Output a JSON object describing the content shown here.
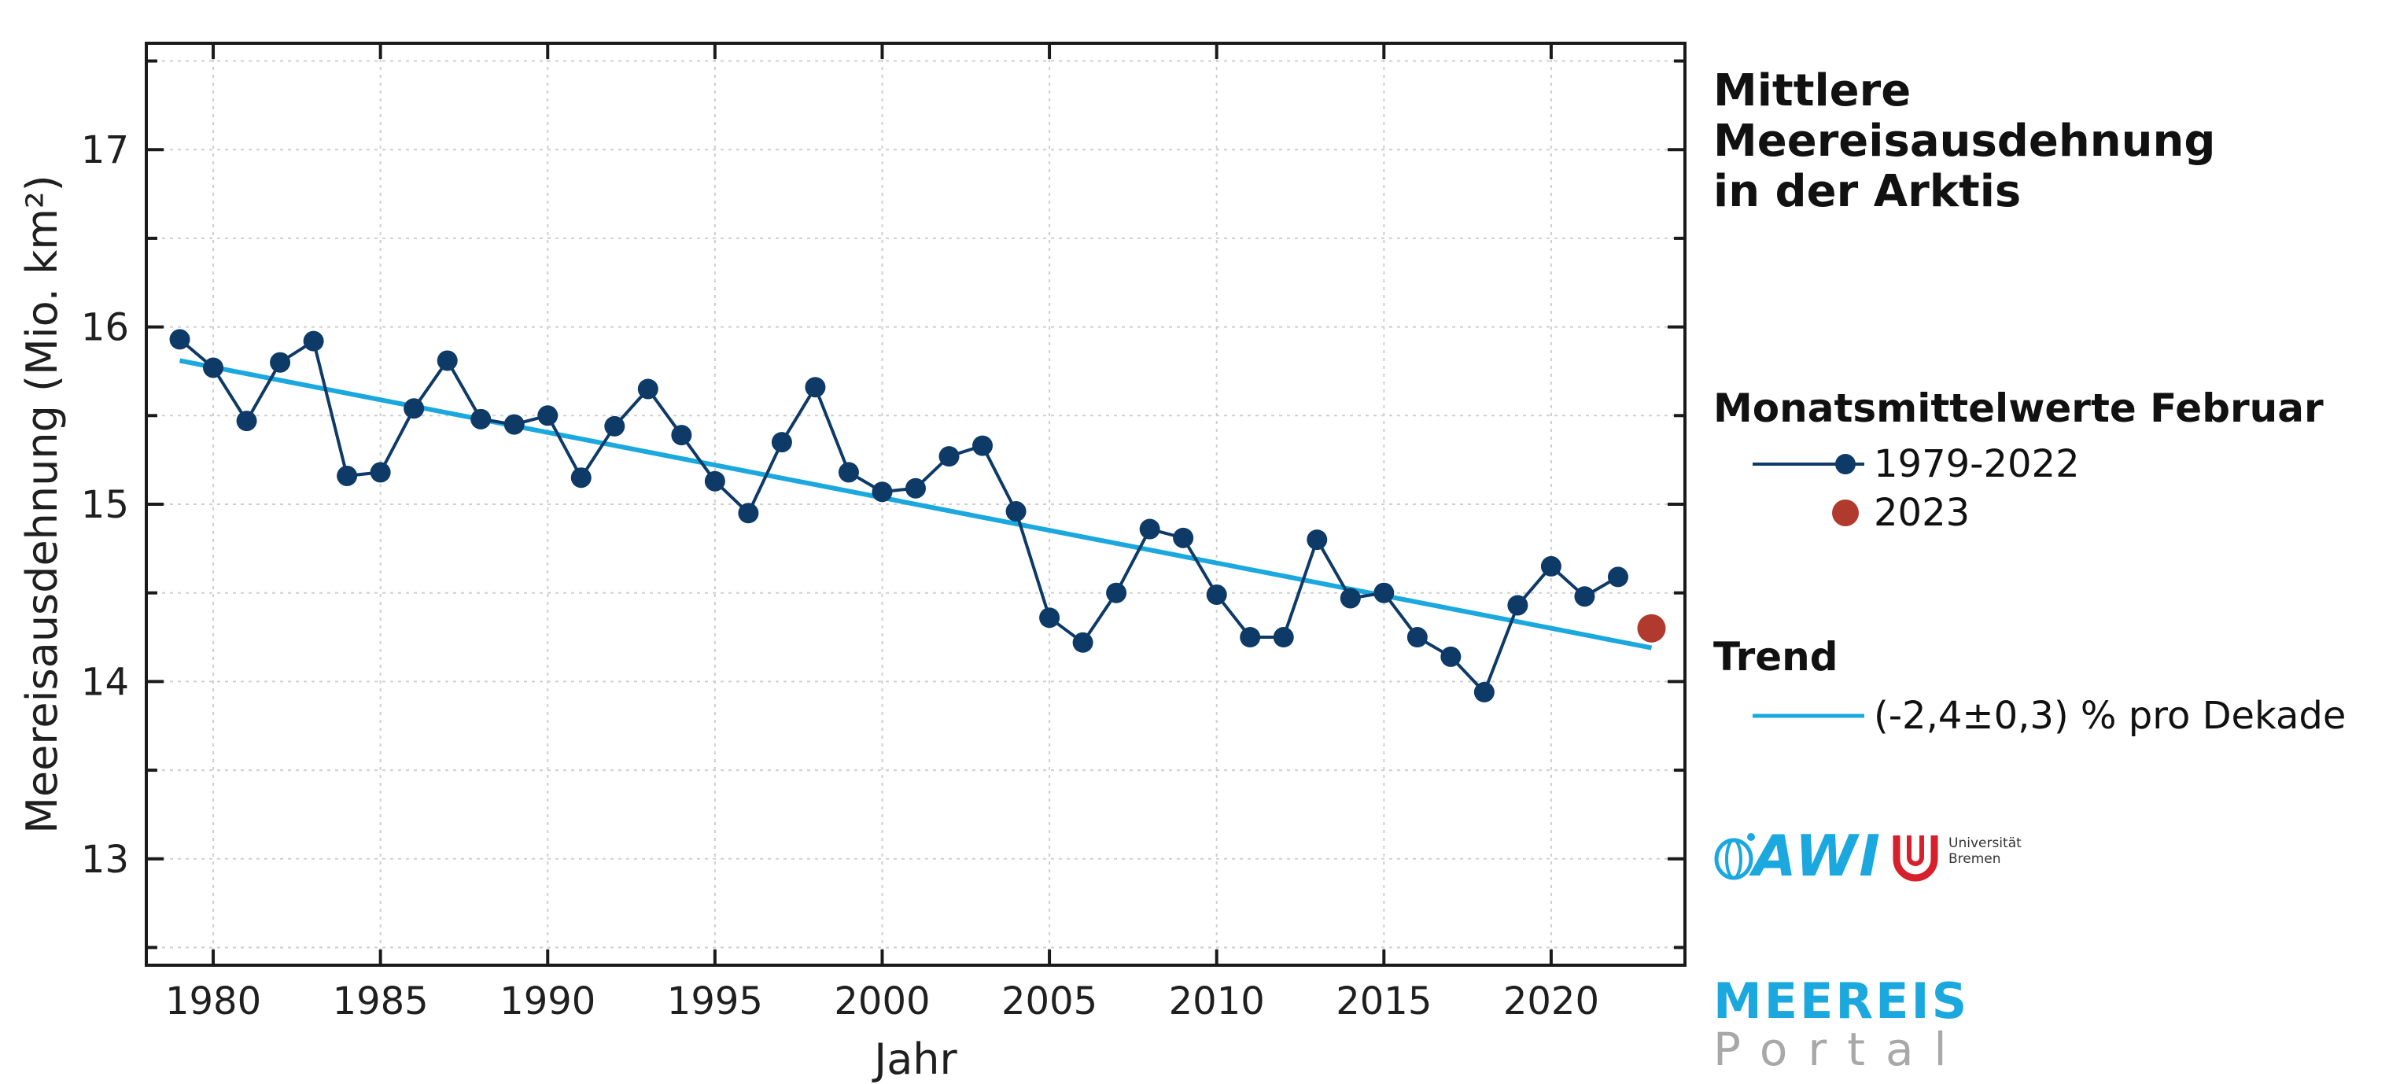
{
  "title_line1": "Mittlere Meereisausdehnung",
  "title_line2": "in der Arktis",
  "legend": {
    "group1_title": "Monatsmittelwerte Februar",
    "series_label": "1979-2022",
    "highlight_label": "2023",
    "group2_title": "Trend",
    "trend_label": "(-2,4±0,3) % pro Dekade"
  },
  "logos": {
    "awi": "AWI",
    "ub_line1": "Universität",
    "ub_line2": "Bremen",
    "portal_line1": "MEEREIS",
    "portal_line2": "Portal"
  },
  "colors": {
    "series": "#0d3a66",
    "trend": "#1aa8df",
    "highlight": "#b03a2e",
    "grid": "#cfcfcf"
  },
  "chart_data": {
    "type": "line",
    "xlabel": "Jahr",
    "ylabel": "Meereisausdehnung (Mio. km²)",
    "xlim": [
      1978,
      2024
    ],
    "ylim": [
      12.4,
      17.6
    ],
    "x_ticks": [
      1980,
      1985,
      1990,
      1995,
      2000,
      2005,
      2010,
      2015,
      2020
    ],
    "y_ticks": [
      13,
      14,
      15,
      16,
      17
    ],
    "grid": true,
    "series": [
      {
        "name": "1979-2022",
        "x": [
          1979,
          1980,
          1981,
          1982,
          1983,
          1984,
          1985,
          1986,
          1987,
          1988,
          1989,
          1990,
          1991,
          1992,
          1993,
          1994,
          1995,
          1996,
          1997,
          1998,
          1999,
          2000,
          2001,
          2002,
          2003,
          2004,
          2005,
          2006,
          2007,
          2008,
          2009,
          2010,
          2011,
          2012,
          2013,
          2014,
          2015,
          2016,
          2017,
          2018,
          2019,
          2020,
          2021,
          2022
        ],
        "y": [
          15.93,
          15.77,
          15.47,
          15.8,
          15.92,
          15.16,
          15.18,
          15.54,
          15.81,
          15.48,
          15.45,
          15.5,
          15.15,
          15.44,
          15.65,
          15.39,
          15.13,
          14.95,
          15.35,
          15.66,
          15.18,
          15.07,
          15.09,
          15.27,
          15.33,
          14.96,
          14.36,
          14.22,
          14.5,
          14.86,
          14.81,
          14.49,
          14.25,
          14.25,
          14.8,
          14.47,
          14.5,
          14.25,
          14.14,
          13.94,
          14.43,
          14.65,
          14.48,
          14.59
        ]
      },
      {
        "name": "2023",
        "x": [
          2023
        ],
        "y": [
          14.3
        ]
      },
      {
        "name": "Trend",
        "x": [
          1979,
          2023
        ],
        "y": [
          15.81,
          14.19
        ]
      }
    ]
  }
}
